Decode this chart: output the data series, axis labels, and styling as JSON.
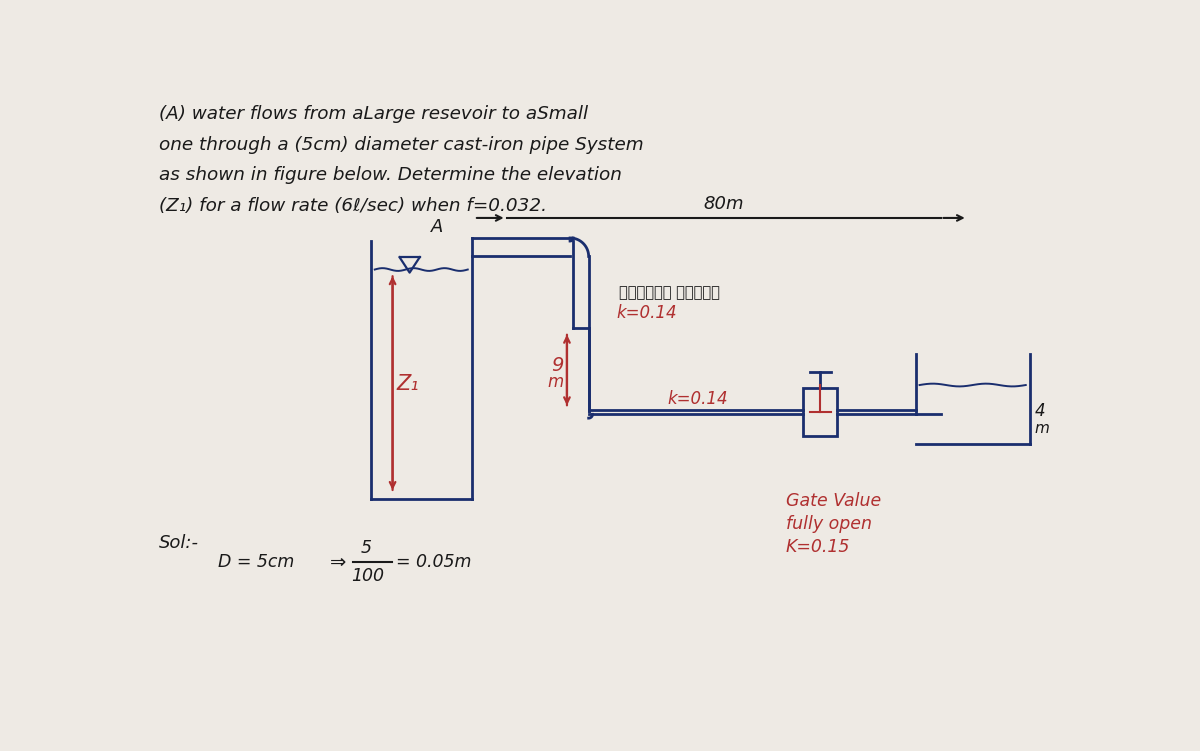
{
  "bg_color": "#eeeae4",
  "text_color": "#1a1a1a",
  "red_color": "#b03030",
  "blue_color": "#1a2e6e",
  "title_lines": [
    "(A) water flows from aLarge resevoir to aSmall",
    "one through a (5cm) diameter cast-iron pipe System",
    "as shown in figure below. Determine the elevation",
    "(Z₁) for a flow rate (6ℓ/sec) when f=0.032."
  ],
  "dim_80m": "80m",
  "label_A": "A",
  "label_Z1": "Z₁",
  "label_9": "9",
  "label_m": "m",
  "label_arabic": "فوانات ثانية",
  "label_k014_top": "k=0.14",
  "label_k014_bot": "k=0.14",
  "label_4": "4",
  "label_m2": "m",
  "sol_line": "Sol:-",
  "label_gv1": "Gate Value",
  "label_gv2": "fully open",
  "label_gv3": "K=0.15"
}
